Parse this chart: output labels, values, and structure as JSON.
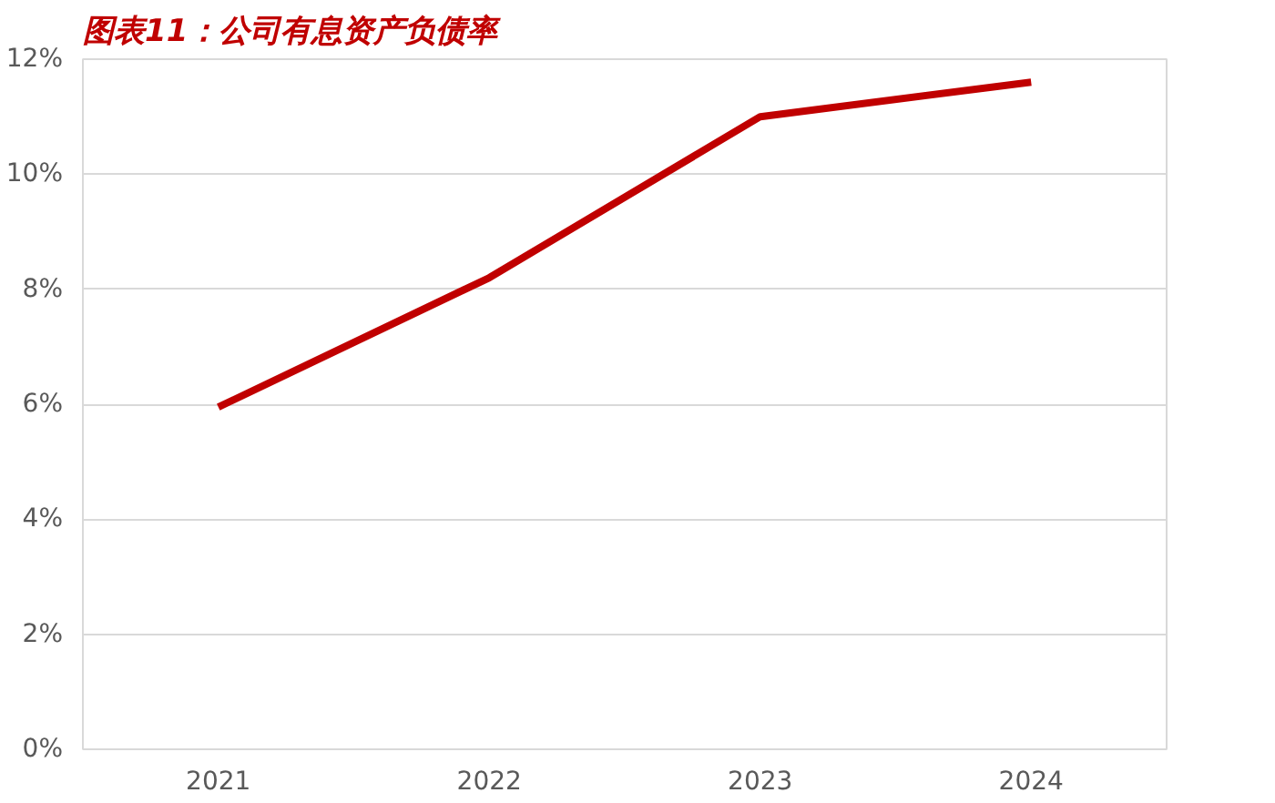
{
  "chart_data": {
    "type": "line",
    "title": "图表11：公司有息资产负债率",
    "categories": [
      "2021",
      "2022",
      "2023",
      "2024"
    ],
    "series": [
      {
        "color": "#c00000",
        "values": [
          5.95,
          8.2,
          11.0,
          11.6
        ]
      }
    ],
    "ylim": [
      0,
      12
    ],
    "yticks": [
      {
        "value": 0,
        "label": "0%"
      },
      {
        "value": 2,
        "label": "2%"
      },
      {
        "value": 4,
        "label": "4%"
      },
      {
        "value": 6,
        "label": "6%"
      },
      {
        "value": 8,
        "label": "8%"
      },
      {
        "value": 10,
        "label": "10%"
      },
      {
        "value": 12,
        "label": "12%"
      }
    ],
    "grid": "y",
    "marker": "none",
    "line_style": "solid"
  }
}
